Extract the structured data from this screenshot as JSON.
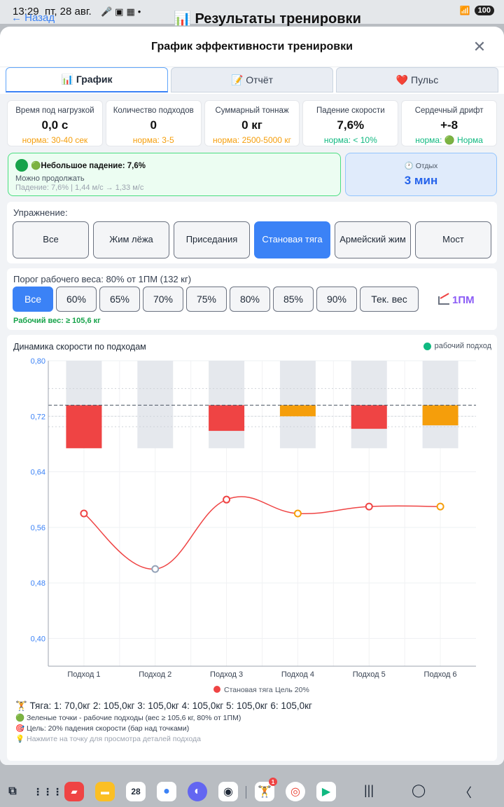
{
  "status_bar": {
    "time": "13:29",
    "date": "пт, 28 авг.",
    "battery": "100"
  },
  "background": {
    "back_label": "← Назад",
    "title": "📊 Результаты тренировки"
  },
  "modal": {
    "title": "График эффективности тренировки",
    "close_icon": "close-icon"
  },
  "tabs": [
    {
      "label": "📊 График",
      "active": true
    },
    {
      "label": "📝 Отчёт",
      "active": false
    },
    {
      "label": "❤️ Пульс",
      "active": false
    }
  ],
  "stats": [
    {
      "label": "Время под нагрузкой",
      "value": "0,0 с",
      "norm": "норма: 30-40 сек",
      "norm_color": "#f59e0b"
    },
    {
      "label": "Количество подходов",
      "value": "0",
      "norm": "норма: 3-5",
      "norm_color": "#f59e0b"
    },
    {
      "label": "Суммарный тоннаж",
      "value": "0 кг",
      "norm": "норма: 2500-5000 кг",
      "norm_color": "#f59e0b"
    },
    {
      "label": "Падение скорости",
      "value": "7,6%",
      "norm": "норма: < 10%",
      "norm_color": "#10b981"
    },
    {
      "label": "Сердечный дрифт",
      "value": "+-8",
      "norm": "норма: 🟢 Норма",
      "norm_color": "#10b981"
    }
  ],
  "alert": {
    "title": "🟢Небольшое падение: 7,6%",
    "subtitle": "Можно продолжать",
    "detail": "Падение: 7,6% | 1,44 м/с → 1,33 м/с"
  },
  "rest": {
    "label": "🕐 Отдых",
    "value": "3 мин"
  },
  "exercise": {
    "label": "Упражнение:",
    "buttons": [
      "Все",
      "Жим лёжа",
      "Приседания",
      "Становая тяга",
      "Армейский жим",
      "Мост"
    ],
    "active_index": 3
  },
  "threshold": {
    "label": "Порог рабочего веса: 80% от 1ПМ (132 кг)",
    "buttons": [
      "Все",
      "60%",
      "65%",
      "70%",
      "75%",
      "80%",
      "85%",
      "90%",
      "Тек. вес"
    ],
    "active_index": 0,
    "one_rm_label": "1ПМ",
    "working_weight": "Рабочий вес: ≥ 105,6 кг"
  },
  "chart_data": {
    "type": "line",
    "title": "Динамика скорости по подходам",
    "top_legend": "рабочий подход",
    "categories": [
      "Подход 1",
      "Подход 2",
      "Подход 3",
      "Подход 4",
      "Подход 5",
      "Подход 6"
    ],
    "ylim": [
      0.36,
      0.8
    ],
    "yticks": [
      "0,80",
      "0,72",
      "0,64",
      "0,56",
      "0,48",
      "0,40"
    ],
    "ytick_values": [
      0.8,
      0.72,
      0.64,
      0.56,
      0.48,
      0.4
    ],
    "target_line": 0.736,
    "series": [
      {
        "name": "Становая тяга",
        "values": [
          0.58,
          0.5,
          0.6,
          0.58,
          0.59,
          0.59
        ],
        "point_colors": [
          "#ef4444",
          "#94a3b8",
          "#ef4444",
          "#f59e0b",
          "#ef4444",
          "#f59e0b"
        ],
        "color": "#ef4444"
      }
    ],
    "drop_bars": [
      {
        "top": 0.736,
        "bottom": 0.674,
        "color": "#ef4444"
      },
      {
        "top": null,
        "bottom": null,
        "color": null
      },
      {
        "top": 0.736,
        "bottom": 0.699,
        "color": "#ef4444"
      },
      {
        "top": 0.736,
        "bottom": 0.72,
        "color": "#f59e0b"
      },
      {
        "top": 0.736,
        "bottom": 0.702,
        "color": "#ef4444"
      },
      {
        "top": 0.736,
        "bottom": 0.707,
        "color": "#f59e0b"
      }
    ],
    "bar_background_range": [
      0.674,
      0.8
    ],
    "bottom_legend": [
      "Становая тяга",
      "Цель 20%"
    ],
    "grid": true
  },
  "notes": {
    "weights": "🏋️ Тяга: 1: 70,0кг  2: 105,0кг  3: 105,0кг  4: 105,0кг  5: 105,0кг  6: 105,0кг",
    "lines": [
      "🟢 Зеленые точки - рабочие подходы (вес ≥ 105,6 кг, 80% от 1ПМ)",
      "🎯 Цель: 20% падения скорости (бар над точками)",
      "💡 Нажмите на точку для просмотра деталей подхода"
    ]
  },
  "taskbar": {
    "apps": [
      "Flip",
      "Files",
      "Calendar",
      "Messages",
      "Browser",
      "Camera",
      "Fitness",
      "Chrome",
      "Play"
    ],
    "calendar_day": "28",
    "badge": "1"
  }
}
